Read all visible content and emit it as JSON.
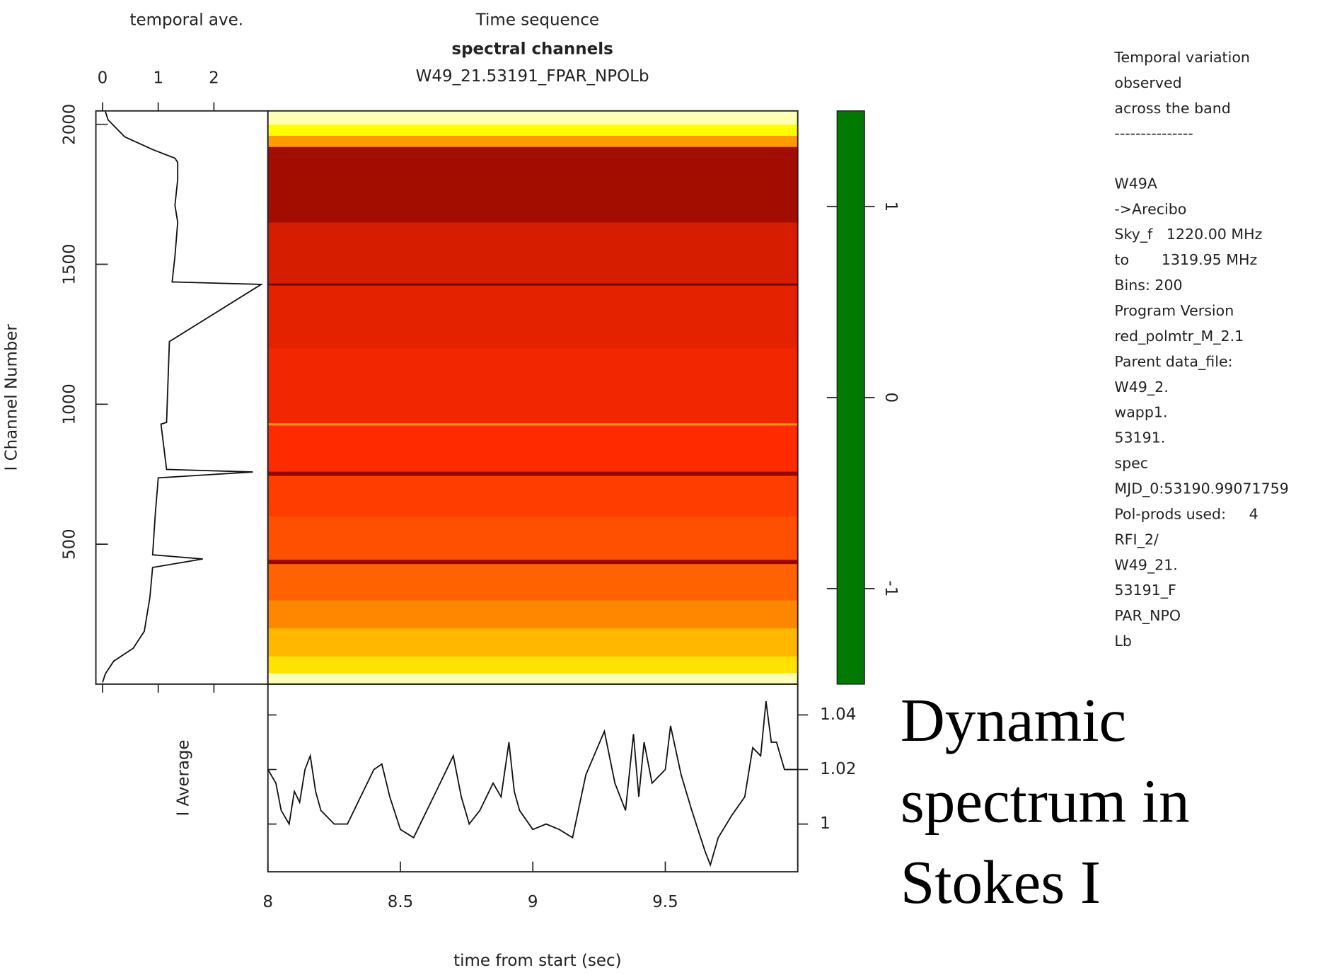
{
  "chart_data": [
    {
      "type": "profile",
      "title": "temporal ave.",
      "ylabel": "I Channel Number",
      "channels": [
        6,
        37,
        82,
        128,
        189,
        310,
        417,
        447,
        462,
        615,
        737,
        758,
        767,
        929,
        935,
        1224,
        1428,
        1437,
        1529,
        1650,
        1711,
        1803,
        1864,
        1879,
        1910,
        1955,
        2016,
        2046
      ],
      "values": [
        0.0,
        0.05,
        0.2,
        0.55,
        0.75,
        0.85,
        0.9,
        1.8,
        0.9,
        0.95,
        1.0,
        2.7,
        1.15,
        1.05,
        1.15,
        1.2,
        2.85,
        1.25,
        1.3,
        1.35,
        1.3,
        1.35,
        1.35,
        1.3,
        0.9,
        0.4,
        0.1,
        0.05
      ],
      "xlim": [
        -0.12,
        2.97
      ],
      "xticks": [
        0,
        1,
        2
      ],
      "ylim": [
        0,
        2048
      ],
      "yticks": [
        500,
        1000,
        1500,
        2000
      ],
      "color": "#111111"
    },
    {
      "type": "heatmap",
      "title": "Time sequence",
      "subtitle": "spectral channels",
      "dataset": "W49_21.53191_FPAR_NPOLb",
      "xlim": [
        8,
        10
      ],
      "ylim": [
        0,
        2048
      ],
      "y_bins": [
        0,
        40,
        100,
        200,
        300,
        430,
        445,
        600,
        745,
        760,
        925,
        933,
        1200,
        1425,
        1432,
        1650,
        1920,
        1960,
        2000,
        2048
      ],
      "values": [
        0.1,
        0.45,
        0.6,
        0.75,
        0.85,
        1.4,
        0.9,
        0.95,
        1.4,
        1.0,
        0.7,
        1.05,
        1.1,
        1.5,
        1.15,
        1.35,
        0.7,
        0.35,
        0.1
      ],
      "clim": [
        -1.5,
        1.5
      ],
      "cticks": [
        -1,
        0,
        1
      ],
      "colormap": [
        {
          "value": -1.5,
          "color": "#007a00"
        },
        {
          "value": -1.15,
          "color": "#00c040"
        },
        {
          "value": -0.9,
          "color": "#00e0e0"
        },
        {
          "value": -0.55,
          "color": "#0040ff"
        },
        {
          "value": -0.2,
          "color": "#a8a8ff"
        },
        {
          "value": 0,
          "color": "#ffffff"
        },
        {
          "value": 0.35,
          "color": "#ffff00"
        },
        {
          "value": 0.7,
          "color": "#ff9a00"
        },
        {
          "value": 1.0,
          "color": "#ff2a00"
        },
        {
          "value": 1.5,
          "color": "#7a0000"
        }
      ]
    },
    {
      "type": "line",
      "xlabel": "time from start (sec)",
      "ylabel": "I Average",
      "x": [
        8.0,
        8.03,
        8.05,
        8.08,
        8.1,
        8.12,
        8.14,
        8.16,
        8.18,
        8.2,
        8.25,
        8.3,
        8.35,
        8.4,
        8.43,
        8.46,
        8.5,
        8.55,
        8.6,
        8.65,
        8.7,
        8.73,
        8.76,
        8.8,
        8.85,
        8.88,
        8.91,
        8.93,
        8.95,
        9.0,
        9.05,
        9.1,
        9.15,
        9.2,
        9.27,
        9.31,
        9.35,
        9.38,
        9.4,
        9.42,
        9.45,
        9.5,
        9.52,
        9.56,
        9.6,
        9.65,
        9.67,
        9.7,
        9.75,
        9.8,
        9.83,
        9.86,
        9.88,
        9.9,
        9.92,
        9.95,
        9.98,
        10.0
      ],
      "values": [
        1.02,
        1.015,
        1.005,
        1.0,
        1.012,
        1.008,
        1.02,
        1.025,
        1.012,
        1.005,
        1.0,
        1.0,
        1.01,
        1.02,
        1.022,
        1.01,
        0.998,
        0.995,
        1.005,
        1.015,
        1.025,
        1.01,
        1.0,
        1.005,
        1.015,
        1.01,
        1.03,
        1.012,
        1.005,
        0.998,
        1.0,
        0.998,
        0.995,
        1.018,
        1.034,
        1.015,
        1.005,
        1.033,
        1.01,
        1.03,
        1.015,
        1.02,
        1.036,
        1.018,
        1.005,
        0.99,
        0.985,
        0.995,
        1.003,
        1.01,
        1.028,
        1.025,
        1.045,
        1.03,
        1.03,
        1.02,
        1.02,
        1.02
      ],
      "xlim": [
        8,
        10
      ],
      "xticks": [
        8,
        8.5,
        9,
        9.5
      ],
      "ylim": [
        0.9825,
        1.0513
      ],
      "yticks": [
        1,
        1.02,
        1.04
      ],
      "color": "#111111"
    }
  ],
  "info_panel": {
    "header": [
      "Temporal variation",
      "observed",
      "across the band"
    ],
    "divider": "---------------",
    "lines": [
      "W49A",
      "->Arecibo",
      "Sky_f   1220.00 MHz",
      "to       1319.95 MHz",
      "Bins: 200",
      "Program Version",
      "red_polmtr_M_2.1",
      "Parent data_file:",
      "W49_2.",
      "wapp1.",
      "53191.",
      "spec",
      "MJD_0:53190.99071759",
      "Pol-prods used:     4",
      "RFI_2/",
      "W49_21.",
      "53191_F",
      "PAR_NPO",
      "Lb"
    ]
  },
  "annotation": [
    "Dynamic",
    "spectrum in",
    "Stokes I"
  ]
}
